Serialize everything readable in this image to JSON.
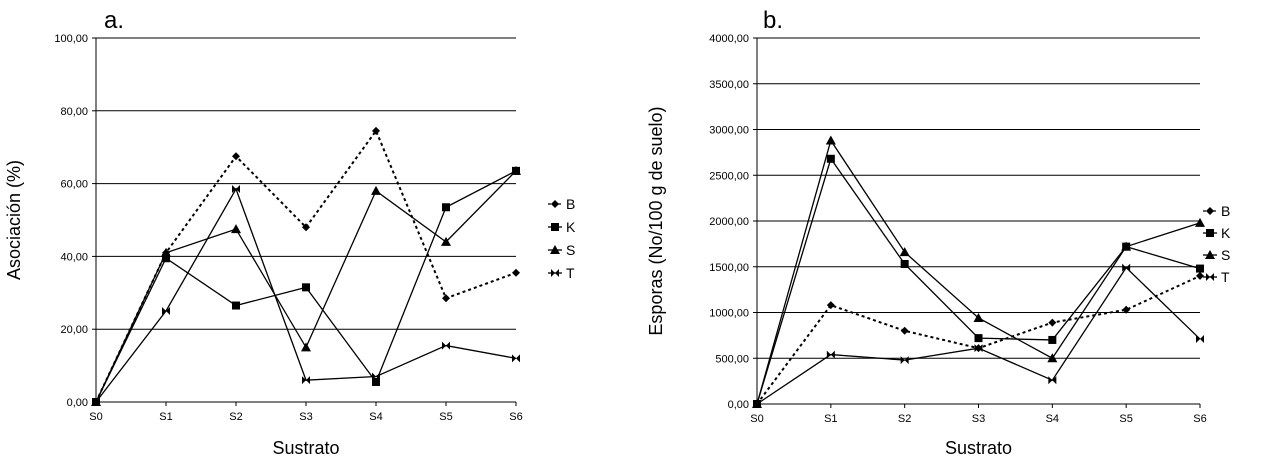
{
  "chart_data": [
    {
      "type": "line",
      "panel_label": "a.",
      "xlabel": "Sustrato",
      "ylabel": "Asociación (%)",
      "ylim": [
        0,
        100
      ],
      "y_ticks": [
        "0,00",
        "20,00",
        "40,00",
        "60,00",
        "80,00",
        "100,00"
      ],
      "categories": [
        "S0",
        "S1",
        "S2",
        "S3",
        "S4",
        "S5",
        "S6"
      ],
      "grid": "horizontal",
      "legend_position": "right",
      "series": [
        {
          "name": "B",
          "marker": "diamond",
          "dashed": true,
          "values": [
            0,
            41,
            67.5,
            48,
            74.5,
            28.5,
            35.5
          ]
        },
        {
          "name": "K",
          "marker": "square",
          "dashed": false,
          "values": [
            0,
            39.5,
            26.5,
            31.5,
            5.5,
            53.5,
            63.5
          ]
        },
        {
          "name": "S",
          "marker": "triangle",
          "dashed": false,
          "values": [
            0,
            41,
            47.5,
            15,
            58,
            44,
            63.5
          ]
        },
        {
          "name": "T",
          "marker": "bowtie",
          "dashed": false,
          "values": [
            0,
            25,
            58.5,
            6,
            7,
            15.5,
            12
          ]
        }
      ]
    },
    {
      "type": "line",
      "panel_label": "b.",
      "xlabel": "Sustrato",
      "ylabel": "Esporas (No/100 g de suelo)",
      "ylim": [
        0,
        4000
      ],
      "y_ticks": [
        "0,00",
        "500,00",
        "1000,00",
        "1500,00",
        "2000,00",
        "2500,00",
        "3000,00",
        "3500,00",
        "4000,00"
      ],
      "categories": [
        "S0",
        "S1",
        "S2",
        "S3",
        "S4",
        "S5",
        "S6"
      ],
      "grid": "horizontal",
      "legend_position": "right",
      "series": [
        {
          "name": "B",
          "marker": "diamond",
          "dashed": true,
          "values": [
            0,
            1080,
            800,
            610,
            890,
            1030,
            1400
          ]
        },
        {
          "name": "K",
          "marker": "square",
          "dashed": false,
          "values": [
            0,
            2680,
            1530,
            720,
            700,
            1720,
            1480
          ]
        },
        {
          "name": "S",
          "marker": "triangle",
          "dashed": false,
          "values": [
            0,
            2880,
            1660,
            940,
            500,
            1720,
            1980
          ]
        },
        {
          "name": "T",
          "marker": "bowtie",
          "dashed": false,
          "values": [
            0,
            540,
            480,
            610,
            260,
            1490,
            710
          ]
        }
      ]
    }
  ]
}
